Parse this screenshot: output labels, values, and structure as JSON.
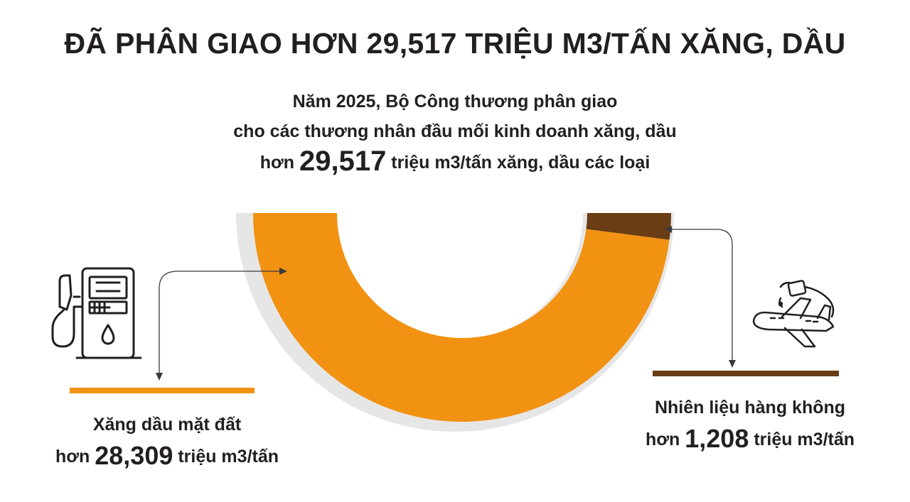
{
  "header": {
    "title": "ĐÃ PHÂN GIAO HƠN 29,517 TRIỆU M3/TẤN XĂNG, DẦU",
    "subtitle_line1": "Năm 2025, Bộ Công thương phân giao",
    "subtitle_line2": "cho các thương nhân đầu mối kinh doanh xăng, dầu",
    "subtitle_prefix": "hơn",
    "subtitle_value": "29,517",
    "subtitle_suffix": "triệu m3/tấn xăng, dầu các loại"
  },
  "labels": {
    "left": {
      "name": "Xăng dầu mặt đất",
      "prefix": "hơn",
      "value": "28,309",
      "unit": "triệu m3/tấn"
    },
    "right": {
      "name": "Nhiên liệu hàng không",
      "prefix": "hơn",
      "value": "1,208",
      "unit": "triệu m3/tấn"
    }
  },
  "colors": {
    "ground": "#f29212",
    "aviation": "#6a3d14",
    "shadow": "#e6e6e6",
    "text": "#231f20",
    "arrow": "#3a3a3a"
  },
  "icons": {
    "left": "fuel-pump-icon",
    "right": "airplane-icon"
  },
  "chart_data": {
    "type": "pie",
    "style": "half-donut",
    "categories": [
      "Xăng dầu mặt đất",
      "Nhiên liệu hàng không"
    ],
    "values": [
      28.309,
      1.208
    ],
    "total": 29.517,
    "unit": "triệu m3/tấn"
  }
}
